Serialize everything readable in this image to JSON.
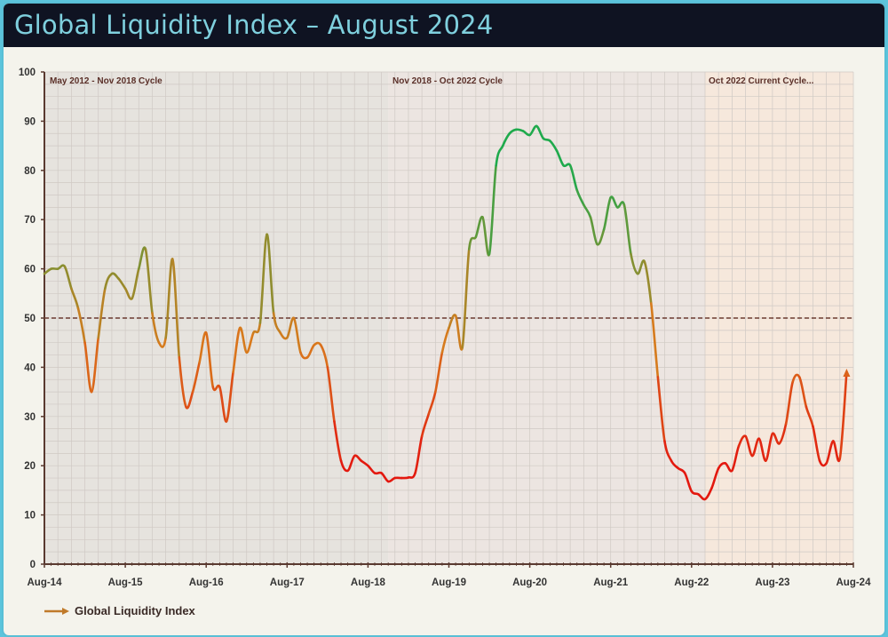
{
  "header": {
    "title": "Global Liquidity Index – August 2024"
  },
  "chart_data": {
    "type": "line",
    "title": "Global Liquidity Index – August 2024",
    "xlabel": "",
    "ylabel": "",
    "ylim": [
      0,
      100
    ],
    "yticks": [
      "0",
      "10",
      "20",
      "30",
      "40",
      "50",
      "60",
      "70",
      "80",
      "90",
      "100"
    ],
    "xticks": [
      "Aug-14",
      "Aug-15",
      "Aug-16",
      "Aug-17",
      "Aug-18",
      "Aug-19",
      "Aug-20",
      "Aug-21",
      "Aug-22",
      "Aug-23",
      "Aug-24"
    ],
    "xrange": [
      "2014-08",
      "2024-08"
    ],
    "grid": true,
    "legend_position": "bottom-left",
    "reference_line": {
      "value": 50,
      "style": "dashed",
      "color": "#6b3a30"
    },
    "cycles": [
      {
        "label": "May 2012 - Nov 2018 Cycle",
        "start": "2014-08",
        "end": "2018-11",
        "color": "#e6e3de"
      },
      {
        "label": "Nov 2018 - Oct 2022 Cycle",
        "start": "2018-11",
        "end": "2022-10",
        "color": "#ece5e1"
      },
      {
        "label": "Oct 2022 Current Cycle...",
        "start": "2022-10",
        "end": "2024-08",
        "color": "#f6e8dc"
      }
    ],
    "colors": {
      "low": "#e3180f",
      "mid": "#d97a1c",
      "high": "#1faa4c"
    },
    "series": [
      {
        "name": "Global Liquidity Index",
        "dates": [
          "2014-08",
          "2014-09",
          "2014-10",
          "2014-11",
          "2014-12",
          "2015-01",
          "2015-02",
          "2015-03",
          "2015-04",
          "2015-05",
          "2015-06",
          "2015-07",
          "2015-08",
          "2015-09",
          "2015-10",
          "2015-11",
          "2015-12",
          "2016-01",
          "2016-02",
          "2016-03",
          "2016-04",
          "2016-05",
          "2016-06",
          "2016-07",
          "2016-08",
          "2016-09",
          "2016-10",
          "2016-11",
          "2016-12",
          "2017-01",
          "2017-02",
          "2017-03",
          "2017-04",
          "2017-05",
          "2017-06",
          "2017-07",
          "2017-08",
          "2017-09",
          "2017-10",
          "2017-11",
          "2017-12",
          "2018-01",
          "2018-02",
          "2018-03",
          "2018-04",
          "2018-05",
          "2018-06",
          "2018-07",
          "2018-08",
          "2018-09",
          "2018-10",
          "2018-11",
          "2018-12",
          "2019-01",
          "2019-02",
          "2019-03",
          "2019-04",
          "2019-05",
          "2019-06",
          "2019-07",
          "2019-08",
          "2019-09",
          "2019-10",
          "2019-11",
          "2019-12",
          "2020-01",
          "2020-02",
          "2020-03",
          "2020-04",
          "2020-05",
          "2020-06",
          "2020-07",
          "2020-08",
          "2020-09",
          "2020-10",
          "2020-11",
          "2020-12",
          "2021-01",
          "2021-02",
          "2021-03",
          "2021-04",
          "2021-05",
          "2021-06",
          "2021-07",
          "2021-08",
          "2021-09",
          "2021-10",
          "2021-11",
          "2021-12",
          "2022-01",
          "2022-02",
          "2022-03",
          "2022-04",
          "2022-05",
          "2022-06",
          "2022-07",
          "2022-08",
          "2022-09",
          "2022-10",
          "2022-11",
          "2022-12",
          "2023-01",
          "2023-02",
          "2023-03",
          "2023-04",
          "2023-05",
          "2023-06",
          "2023-07",
          "2023-08",
          "2023-09",
          "2023-10",
          "2023-11",
          "2023-12",
          "2024-01",
          "2024-02",
          "2024-03",
          "2024-04",
          "2024-05",
          "2024-06",
          "2024-07"
        ],
        "values": [
          59,
          60,
          60,
          60.5,
          56,
          52,
          45,
          35,
          46,
          56,
          59,
          58,
          56,
          54,
          60,
          64,
          51,
          45,
          46,
          62,
          42,
          32,
          35,
          41,
          47,
          36,
          36,
          29,
          39,
          48,
          43,
          47,
          49,
          67,
          51,
          47,
          46,
          50,
          43,
          42,
          44.5,
          44.5,
          40,
          29,
          21,
          19,
          22,
          21,
          20,
          18.5,
          18.5,
          16.8,
          17.5,
          17.5,
          17.6,
          18.5,
          26,
          30.5,
          35,
          43,
          48,
          50.5,
          44,
          64,
          66.5,
          70.5,
          63,
          81,
          85,
          87.5,
          88.3,
          88,
          87.2,
          89,
          86.5,
          86,
          84,
          81,
          81,
          76,
          73,
          70.5,
          65,
          68,
          74.5,
          72.5,
          73,
          63,
          59,
          61.5,
          53,
          38,
          25,
          21,
          19.5,
          18.5,
          14.8,
          14.2,
          13.2,
          15.5,
          19.5,
          20.5,
          19,
          24,
          26,
          22,
          25.5,
          21,
          26.5,
          24.5,
          28.5,
          37,
          38,
          32,
          28,
          21,
          20.5,
          25,
          21.5,
          39
        ]
      }
    ]
  }
}
